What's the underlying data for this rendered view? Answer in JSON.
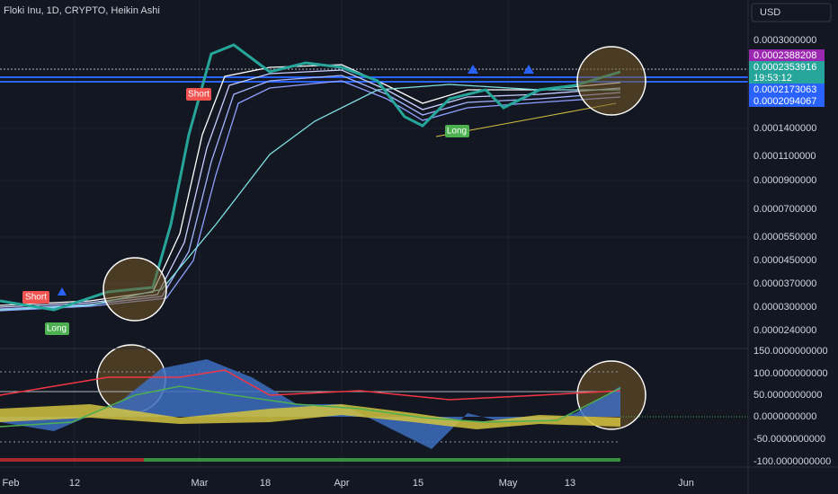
{
  "header": {
    "symbol": "Floki Inu, 1D, CRYPTO, Heikin Ashi",
    "currency": "USD"
  },
  "price_axis": [
    "0.0003000000",
    "0.0001400000",
    "0.0001100000",
    "0.0000900000",
    "0.0000700000",
    "0.0000550000",
    "0.0000450000",
    "0.0000370000",
    "0.0000300000",
    "0.0000240000"
  ],
  "price_tags": [
    "0.0002388208",
    "0.0002353916",
    "19:53:12",
    "0.0002173063",
    "0.0002094067"
  ],
  "oscillator_axis": [
    "150.0000000000",
    "100.0000000000",
    "50.0000000000",
    "0.0000000000",
    "-50.0000000000",
    "-100.0000000000"
  ],
  "time_axis": [
    "Feb",
    "12",
    "Mar",
    "18",
    "Apr",
    "15",
    "May",
    "13",
    "Jun"
  ],
  "signals": [
    "Short",
    "Short",
    "Long",
    "Long"
  ]
}
